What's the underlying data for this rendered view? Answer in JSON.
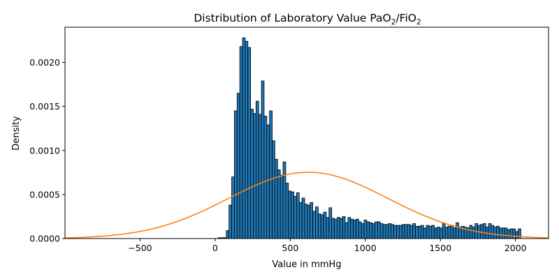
{
  "chart_data": {
    "type": "bar",
    "title": "Distribution of Laboratory Value PaO",
    "title_sub1": "2",
    "title_mid": "/FiO",
    "title_sub2": "2",
    "xlabel": "Value in mmHg",
    "ylabel": "Density",
    "xlim": [
      -1000,
      2220
    ],
    "ylim": [
      0,
      0.0024
    ],
    "x_ticks": [
      -500,
      0,
      500,
      1000,
      1500,
      2000
    ],
    "x_tick_labels": [
      "−500",
      "0",
      "500",
      "1000",
      "1500",
      "2000"
    ],
    "y_ticks": [
      0,
      0.0005,
      0.001,
      0.0015,
      0.002
    ],
    "y_tick_labels": [
      "0.0000",
      "0.0005",
      "0.0010",
      "0.0015",
      "0.0020"
    ],
    "grid": false,
    "histogram": {
      "bin_start": 20,
      "bin_width": 18,
      "bar_color": "#1f77b4",
      "edge_color": "#000000",
      "densities": [
        1e-05,
        1e-05,
        1e-05,
        9e-05,
        0.00038,
        0.0007,
        0.00145,
        0.00165,
        0.00218,
        0.00228,
        0.00224,
        0.00217,
        0.00147,
        0.00142,
        0.00156,
        0.00141,
        0.00179,
        0.00139,
        0.00129,
        0.00145,
        0.00111,
        0.0009,
        0.00078,
        0.00072,
        0.00087,
        0.00063,
        0.00054,
        0.00053,
        0.00048,
        0.00052,
        0.00041,
        0.00046,
        0.00039,
        0.00038,
        0.00041,
        0.00031,
        0.00036,
        0.00028,
        0.00027,
        0.0003,
        0.00024,
        0.00035,
        0.00023,
        0.00022,
        0.00024,
        0.00023,
        0.00025,
        0.00018,
        0.00024,
        0.00022,
        0.00021,
        0.00022,
        0.00019,
        0.00017,
        0.00021,
        0.00019,
        0.00018,
        0.00017,
        0.00019,
        0.00019,
        0.00017,
        0.00016,
        0.00016,
        0.00017,
        0.00016,
        0.00015,
        0.00015,
        0.00015,
        0.00016,
        0.00016,
        0.00016,
        0.00015,
        0.00017,
        0.00014,
        0.00014,
        0.00015,
        0.00012,
        0.00015,
        0.00014,
        0.00015,
        0.00012,
        0.00013,
        0.00012,
        0.00017,
        0.00013,
        0.00014,
        0.00015,
        0.00012,
        0.00018,
        0.00013,
        0.00014,
        0.00013,
        0.00012,
        0.00015,
        0.00013,
        0.00017,
        0.00015,
        0.00016,
        0.00017,
        0.00013,
        0.00017,
        0.00015,
        0.00013,
        0.00014,
        0.00012,
        0.00012,
        0.00012,
        0.0001,
        0.00011,
        0.00011,
        8e-05,
        0.00011
      ]
    },
    "normal_curve": {
      "color": "#ff7f0e",
      "mean": 620,
      "std": 530
    }
  }
}
